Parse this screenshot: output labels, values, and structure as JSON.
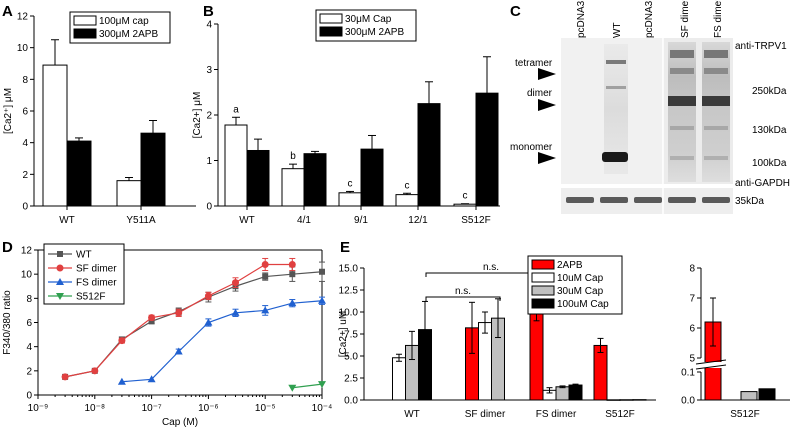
{
  "panels": {
    "A": "A",
    "B": "B",
    "C": "C",
    "D": "D",
    "E": "E"
  },
  "chart_data": [
    {
      "id": "A",
      "type": "bar",
      "ylabel": "[Ca2⁺] μM",
      "ylim": [
        0,
        12
      ],
      "yticks": [
        "0",
        "2",
        "4",
        "6",
        "8",
        "10",
        "12"
      ],
      "categories": [
        "WT",
        "Y511A"
      ],
      "series": [
        {
          "name": "100μM cap",
          "color": "#ffffff",
          "values": [
            8.9,
            1.6
          ],
          "errors": [
            1.6,
            0.2
          ]
        },
        {
          "name": "300μM 2APB",
          "color": "#000000",
          "values": [
            4.1,
            4.6
          ],
          "errors": [
            0.2,
            0.8
          ]
        }
      ],
      "legend_position": "top-right"
    },
    {
      "id": "B",
      "type": "bar",
      "ylabel": "[Ca2+] μM",
      "ylim": [
        0,
        4
      ],
      "yticks": [
        "0",
        "1",
        "2",
        "3",
        "4"
      ],
      "categories": [
        "WT",
        "4/1",
        "9/1",
        "12/1",
        "S512F"
      ],
      "series": [
        {
          "name": "30μM Cap",
          "color": "#ffffff",
          "values": [
            1.78,
            0.82,
            0.29,
            0.25,
            0.04
          ],
          "errors": [
            0.17,
            0.1,
            0.03,
            0.03,
            0.01
          ]
        },
        {
          "name": "300μM 2APB",
          "color": "#000000",
          "values": [
            1.22,
            1.15,
            1.25,
            2.25,
            2.48
          ],
          "errors": [
            0.25,
            0.05,
            0.3,
            0.48,
            0.8
          ]
        }
      ],
      "annotations": [
        "a",
        "b",
        "c",
        "c",
        "c"
      ],
      "legend_position": "top-right"
    },
    {
      "id": "D",
      "type": "line",
      "xlabel": "Cap (M)",
      "ylabel": "F340/380 ratio",
      "xscale": "log",
      "xlim": [
        1e-09,
        0.0001
      ],
      "ylim": [
        0,
        12
      ],
      "xticks": [
        "10⁻⁹",
        "10⁻⁸",
        "10⁻⁷",
        "10⁻⁶",
        "10⁻⁵",
        "10⁻⁴"
      ],
      "yticks": [
        "0",
        "2",
        "4",
        "6",
        "8",
        "10",
        "12"
      ],
      "series": [
        {
          "name": "WT",
          "color": "#555555",
          "marker": "square",
          "x": [
            3e-09,
            1e-08,
            3e-08,
            1e-07,
            3e-07,
            1e-06,
            3e-06,
            1e-05,
            3e-05,
            0.0001
          ],
          "y": [
            1.5,
            2.0,
            4.6,
            6.1,
            6.9,
            8.1,
            9.0,
            9.8,
            10.0,
            10.2
          ],
          "err": [
            0,
            0,
            0.2,
            0.2,
            0.3,
            0.4,
            0.4,
            0.3,
            0.6,
            0.8
          ]
        },
        {
          "name": "SF dimer",
          "color": "#e04040",
          "marker": "circle",
          "x": [
            3e-09,
            1e-08,
            3e-08,
            1e-07,
            3e-07,
            1e-06,
            3e-06,
            1e-05,
            3e-05
          ],
          "y": [
            1.5,
            2.0,
            4.5,
            6.4,
            6.8,
            8.2,
            9.3,
            10.8,
            10.8
          ],
          "err": [
            0,
            0,
            0.2,
            0.2,
            0.3,
            0.3,
            0.4,
            0.5,
            0.5
          ]
        },
        {
          "name": "FS dimer",
          "color": "#2060d0",
          "marker": "triangle",
          "x": [
            3e-08,
            1e-07,
            3e-07,
            1e-06,
            3e-06,
            1e-05,
            3e-05,
            0.0001
          ],
          "y": [
            1.1,
            1.3,
            3.6,
            6.0,
            6.8,
            7.0,
            7.6,
            7.8
          ],
          "err": [
            0,
            0,
            0.2,
            0.3,
            0.3,
            0.4,
            0.3,
            0.3
          ]
        },
        {
          "name": "S512F",
          "color": "#30a050",
          "marker": "triangle-down",
          "x": [
            3e-05,
            0.0001
          ],
          "y": [
            0.6,
            0.9
          ],
          "err": [
            0,
            0
          ]
        }
      ],
      "legend_position": "top-left"
    },
    {
      "id": "E",
      "type": "bar",
      "ylabel": "[Ca2+] uM",
      "ylim": [
        0,
        15
      ],
      "yticks": [
        "0.0",
        "2.5",
        "5.0",
        "7.5",
        "10.0",
        "12.5",
        "15.0"
      ],
      "categories": [
        "WT",
        "SF dimer",
        "FS dimer",
        "S512F"
      ],
      "series": [
        {
          "name": "2APB",
          "color": "#ff0000",
          "values": [
            null,
            8.2,
            10.4,
            6.2
          ],
          "errors": [
            null,
            2.9,
            1.4,
            0.8
          ]
        },
        {
          "name": "10uM Cap",
          "color": "#ffffff",
          "values": [
            4.8,
            8.8,
            1.1,
            0.02
          ],
          "errors": [
            0.4,
            1.2,
            0.3,
            0.01
          ]
        },
        {
          "name": "30uM Cap",
          "color": "#c0c0c0",
          "values": [
            6.2,
            9.3,
            1.5,
            0.03
          ],
          "errors": [
            1.6,
            2.2,
            0.1,
            0.01
          ]
        },
        {
          "name": "100uM Cap",
          "color": "#000000",
          "values": [
            8.0,
            null,
            1.7,
            0.04
          ],
          "errors": [
            3.2,
            null,
            0.1,
            0.01
          ]
        }
      ],
      "annotations": [
        "n.s.",
        "n.s."
      ],
      "legend_position": "top-right",
      "inset": {
        "category": "S512F",
        "yticks_upper": [
          "5",
          "6",
          "7",
          "8"
        ],
        "yticks_lower": [
          "0.0",
          "0.1"
        ],
        "values": {
          "2APB": 6.2,
          "30uM Cap": 0.03,
          "100uM Cap": 0.04
        },
        "errors": {
          "2APB": 0.8
        }
      }
    }
  ],
  "blot": {
    "lanes": [
      "pcDNA3",
      "WT",
      "pcDNA3",
      "SF dimer",
      "FS dimer"
    ],
    "antibody_top": "anti-TRPV1",
    "antibody_bottom": "anti-GAPDH",
    "bands_left": [
      "tetramer",
      "dimer",
      "monomer"
    ],
    "markers": [
      "250kDa",
      "130kDa",
      "100kDa",
      "35kDa"
    ]
  }
}
